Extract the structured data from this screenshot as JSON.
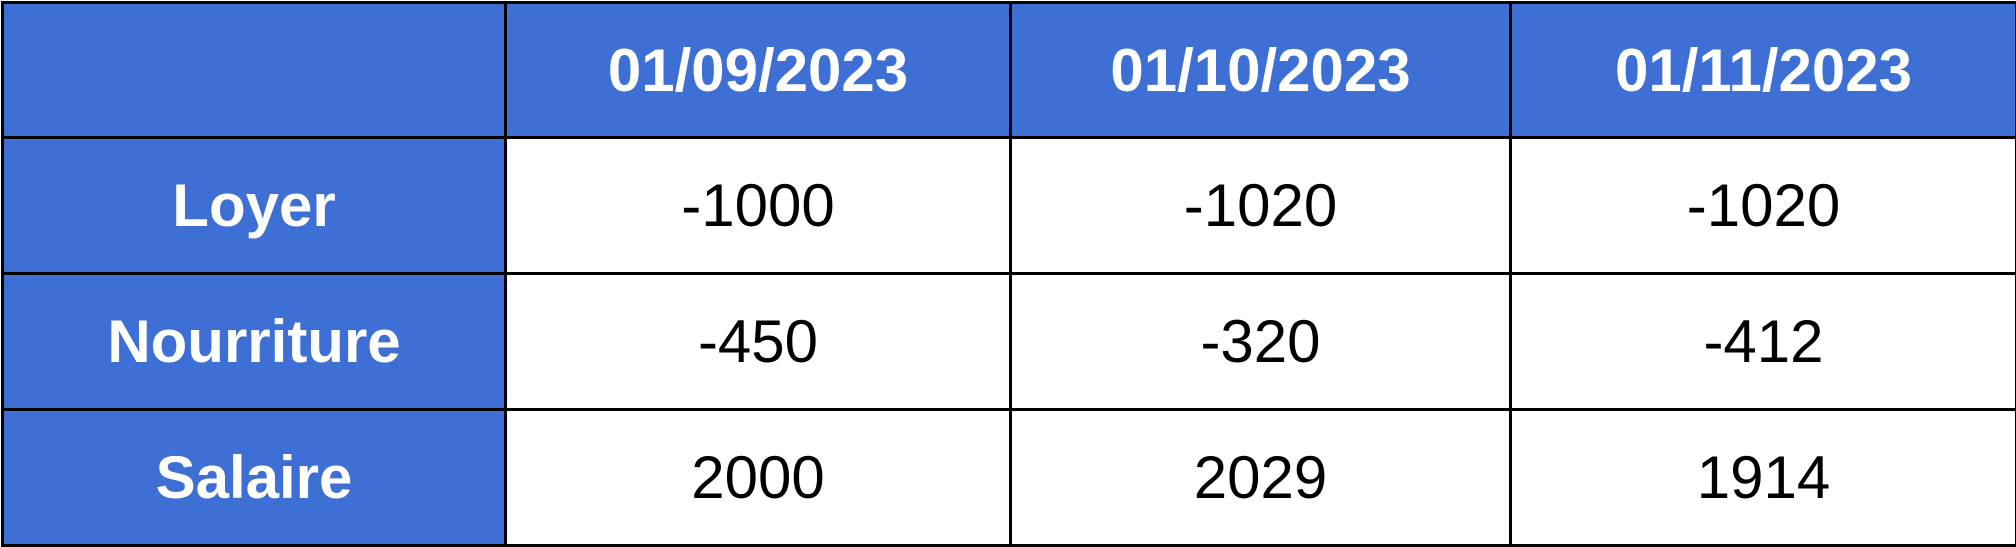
{
  "colors": {
    "header_background": "#3e6fd5",
    "header_text": "#ffffff",
    "cell_background": "#ffffff",
    "cell_text": "#000000",
    "border": "#000000"
  },
  "chart_data": {
    "type": "table",
    "corner_label": "",
    "columns": [
      "01/09/2023",
      "01/10/2023",
      "01/11/2023"
    ],
    "rows": [
      {
        "label": "Loyer",
        "values": [
          "-1000",
          "-1020",
          "-1020"
        ]
      },
      {
        "label": "Nourriture",
        "values": [
          "-450",
          "-320",
          "-412"
        ]
      },
      {
        "label": "Salaire",
        "values": [
          "2000",
          "2029",
          "1914"
        ]
      }
    ]
  }
}
